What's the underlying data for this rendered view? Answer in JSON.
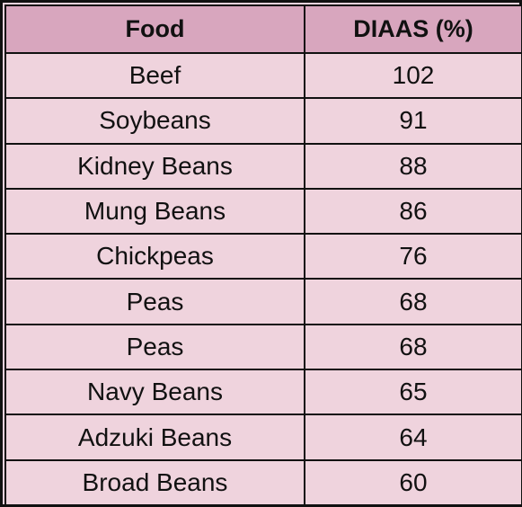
{
  "colors": {
    "header_bg": "#d8a6be",
    "row_bg": "#efd3dd",
    "border": "#111111"
  },
  "table": {
    "headers": [
      "Food",
      "DIAAS (%)"
    ],
    "rows": [
      [
        "Beef",
        "102"
      ],
      [
        "Soybeans",
        "91"
      ],
      [
        "Kidney Beans",
        "88"
      ],
      [
        "Mung Beans",
        "86"
      ],
      [
        "Chickpeas",
        "76"
      ],
      [
        "Peas",
        "68"
      ],
      [
        "Peas",
        "68"
      ],
      [
        "Navy Beans",
        "65"
      ],
      [
        "Adzuki Beans",
        "64"
      ],
      [
        "Broad Beans",
        "60"
      ]
    ]
  }
}
